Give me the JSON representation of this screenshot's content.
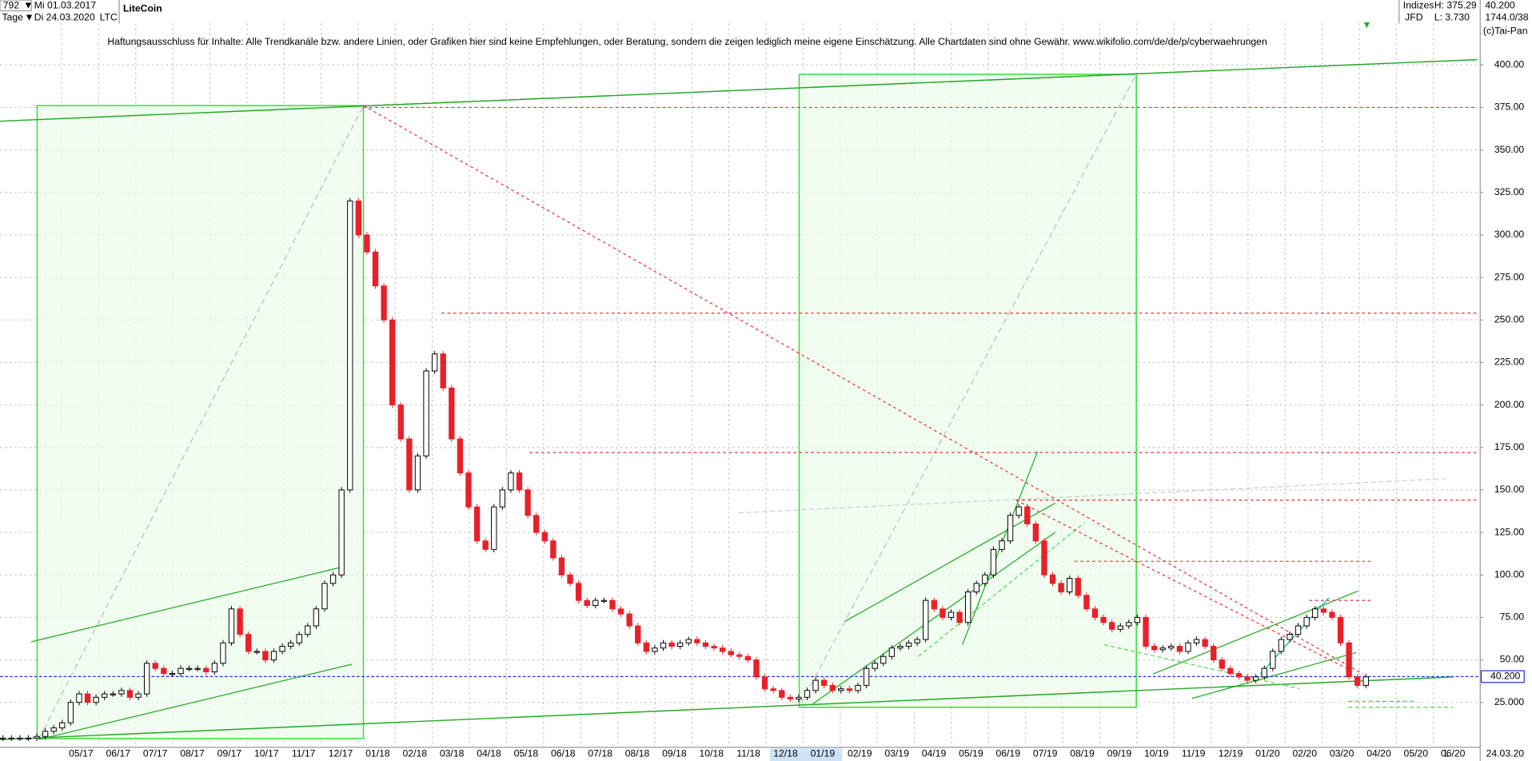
{
  "header": {
    "count": "792",
    "start": "Mi 01.03.2017",
    "period": "Tage",
    "end": "Di 24.03.2020",
    "symbol": "LTC",
    "market": "Indizes",
    "broker": "JFD",
    "high": "H: 375.29",
    "low": "L: 3.730",
    "last": "40.200",
    "stats": "1744.0/38",
    "brand": "(c)Tai-Pan",
    "disclaimer": "Haftungsausschluss für Inhalte: Alle Trendkanäle bzw. andere Linien, oder Grafiken hier sind keine Empfehlungen, oder Beratung, sondern die zeigen lediglich meine eigene Einschätzung. Alle Chartdaten sind ohne Gewähr.  www.wikifolio.com/de/de/p/cyberwaehrungen",
    "date_end": "24.03.20",
    "scale_mode": "L"
  },
  "chart_data": {
    "type": "candlestick",
    "title": "LiteCoin",
    "values": [
      4,
      4,
      4,
      4,
      5,
      8,
      10,
      13,
      25,
      30,
      25,
      28,
      30,
      30,
      32,
      28,
      30,
      48,
      45,
      42,
      42,
      45,
      45,
      45,
      43,
      48,
      60,
      80,
      65,
      55,
      55,
      50,
      55,
      58,
      60,
      65,
      70,
      80,
      95,
      100,
      150,
      320,
      300,
      290,
      270,
      250,
      200,
      180,
      150,
      170,
      220,
      230,
      210,
      180,
      160,
      140,
      120,
      115,
      140,
      150,
      160,
      150,
      135,
      125,
      120,
      110,
      100,
      95,
      85,
      82,
      85,
      85,
      80,
      77,
      70,
      60,
      55,
      57,
      60,
      58,
      60,
      62,
      60,
      58,
      57,
      55,
      53,
      52,
      50,
      40,
      33,
      32,
      28,
      27,
      28,
      32,
      38,
      35,
      32,
      33,
      32,
      35,
      45,
      48,
      52,
      57,
      58,
      60,
      62,
      85,
      80,
      75,
      78,
      72,
      90,
      95,
      100,
      115,
      120,
      135,
      140,
      130,
      120,
      100,
      95,
      90,
      98,
      88,
      80,
      75,
      72,
      68,
      70,
      72,
      75,
      58,
      56,
      57,
      58,
      55,
      60,
      62,
      58,
      50,
      45,
      42,
      40,
      38,
      40,
      45,
      55,
      62,
      65,
      70,
      75,
      80,
      78,
      75,
      60,
      40,
      35,
      40
    ],
    "up_color": "#000000",
    "down_color": "#e8202a",
    "xticks": [
      "05/17",
      "06/17",
      "07/17",
      "08/17",
      "09/17",
      "10/17",
      "11/17",
      "12/17",
      "01/18",
      "02/18",
      "03/18",
      "04/18",
      "05/18",
      "06/18",
      "07/18",
      "08/18",
      "09/18",
      "10/18",
      "11/18",
      "12/18",
      "01/19",
      "02/19",
      "03/19",
      "04/19",
      "05/19",
      "06/19",
      "07/19",
      "08/19",
      "09/19",
      "10/19",
      "11/19",
      "12/19",
      "01/20",
      "02/20",
      "03/20",
      "04/20",
      "05/20",
      "06/20"
    ],
    "ylim": [
      -1.4,
      424.4
    ],
    "yticks": [
      {
        "value": 25,
        "label": "25.000"
      },
      {
        "value": 50,
        "label": "50.00"
      },
      {
        "value": 75,
        "label": "75.00"
      },
      {
        "value": 100,
        "label": "100.00"
      },
      {
        "value": 125,
        "label": "125.00"
      },
      {
        "value": 150,
        "label": "150.00"
      },
      {
        "value": 175,
        "label": "175.00"
      },
      {
        "value": 200,
        "label": "200.00"
      },
      {
        "value": 225,
        "label": "225.00"
      },
      {
        "value": 250,
        "label": "250.00"
      },
      {
        "value": 275,
        "label": "275.00"
      },
      {
        "value": 300,
        "label": "300.00"
      },
      {
        "value": 325,
        "label": "325.00"
      },
      {
        "value": 350,
        "label": "350.00"
      },
      {
        "value": 375,
        "label": "375.00"
      },
      {
        "value": 400,
        "label": "400.00"
      }
    ],
    "current": {
      "value": 40.2,
      "label": "40.200"
    },
    "levels": [
      375,
      254,
      172,
      144,
      108,
      85
    ],
    "grid": true
  }
}
